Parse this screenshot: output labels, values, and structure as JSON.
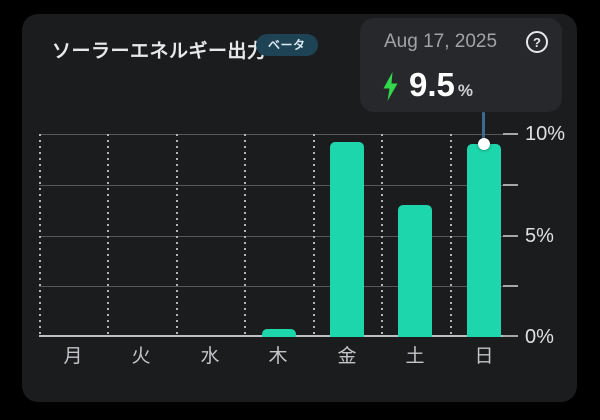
{
  "header": {
    "title": "ソーラーエネルギー出力",
    "badge": "ベータ"
  },
  "info_panel": {
    "date": "Aug 17, 2025",
    "value": "9.5",
    "unit": "%",
    "bolt_icon": "lightning-bolt",
    "help_icon": "question-mark-circle",
    "help_glyph": "?"
  },
  "colors": {
    "bar": "#1ed6ab",
    "bolt_green": "#32d74b",
    "badge_bg": "#1d4355",
    "selection_line": "#3a6b8e",
    "card_bg": "#1b1c1e",
    "panel_bg": "#27282b",
    "gridline": "#55575b",
    "axis_line": "#bfbfc3"
  },
  "chart_data": {
    "type": "bar",
    "title": "ソーラーエネルギー出力",
    "categories": [
      "月",
      "火",
      "水",
      "木",
      "金",
      "土",
      "日"
    ],
    "values": [
      0,
      0,
      0,
      0.4,
      9.6,
      6.5,
      9.5
    ],
    "unit": "%",
    "ylim": [
      0,
      10
    ],
    "ytick_labels": [
      {
        "value": 10,
        "label": "10%"
      },
      {
        "value": 5,
        "label": "5%"
      },
      {
        "value": 0,
        "label": "0%"
      }
    ],
    "gridline_values": [
      0,
      2.5,
      5,
      7.5,
      10
    ],
    "selected_index": 6,
    "selected_value": 9.5,
    "legend": "none",
    "grid": "horizontal-solid-vertical-dashed"
  }
}
